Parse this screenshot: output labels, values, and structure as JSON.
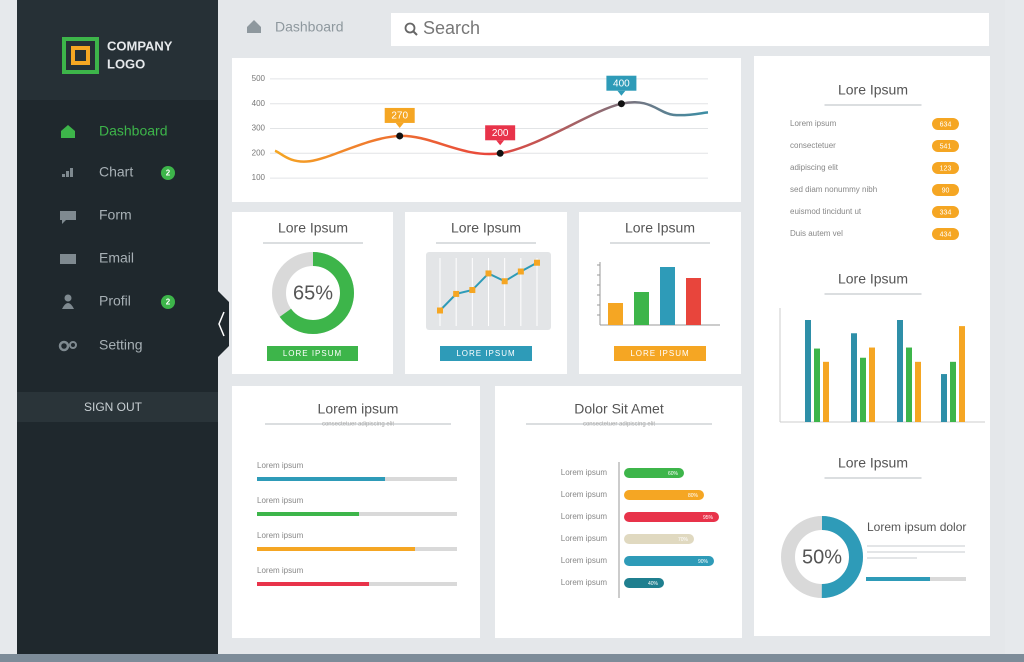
{
  "sidebar": {
    "logo": [
      "COMPANY",
      "LOGO"
    ],
    "nav": [
      {
        "label": "Dashboard"
      },
      {
        "label": "Chart",
        "badge": 2
      },
      {
        "label": "Form"
      },
      {
        "label": "Email"
      },
      {
        "label": "Profil",
        "badge": 2
      },
      {
        "label": "Setting"
      }
    ],
    "sign_out": "SIGN OUT"
  },
  "header": {
    "breadcrumb": "Dashboard",
    "search": "Search"
  },
  "list_card": {
    "title": "Lore Ipsum",
    "items": [
      "Lorem ipsum",
      "consectetuer",
      "adipiscing elit",
      "sed diam nonummy nibh",
      "euismod tincidunt ut",
      "Duis autem vel"
    ],
    "badges": [
      634,
      541,
      123,
      90,
      334,
      434
    ]
  },
  "chart_data": [
    {
      "type": "line",
      "x": [
        0,
        1,
        3.6,
        6.5,
        10,
        11.5,
        12.5
      ],
      "values": [
        210,
        168,
        270,
        200,
        400,
        355,
        365
      ],
      "xlim": [
        0,
        12.5
      ],
      "ylim": [
        60,
        540
      ],
      "yticks": [
        100,
        200,
        300,
        400,
        500
      ],
      "grid": true,
      "colors": [
        "#f5a623",
        "#e8453c",
        "#3b8ea5"
      ],
      "points": {
        "x": [
          3.6,
          6.5,
          10
        ],
        "values": [
          270,
          200,
          400
        ],
        "colors": [
          "#f5a623",
          "#e8334a",
          "#2e9bb8"
        ]
      }
    },
    {
      "type": "donut",
      "title": "Lore Ipsum",
      "values": [
        65
      ],
      "value_labels": [
        "65%"
      ],
      "color": "#3db54a",
      "button": "LORE IPSUM",
      "button_color": "#3db54a"
    },
    {
      "type": "line",
      "title": "Lore Ipsum",
      "values": [
        2,
        3.7,
        4.1,
        5.8,
        5,
        6,
        6.9
      ],
      "ylim": [
        0,
        8
      ],
      "color": "#2e9bb8",
      "marker_color": "#f5a623",
      "button": "LORE IPSUM",
      "button_color": "#2e9bb8"
    },
    {
      "type": "bar",
      "title": "Lore Ipsum",
      "values": [
        22,
        33,
        58,
        47
      ],
      "colors": [
        "#f5a623",
        "#3db54a",
        "#2e9bb8",
        "#e8453c"
      ],
      "ylim": [
        0,
        60
      ],
      "yticks": [
        10,
        20,
        30,
        40,
        50,
        60
      ],
      "button": "LORE IPSUM",
      "button_color": "#f5a623"
    },
    {
      "type": "progress",
      "title": "Lorem ipsum",
      "subtitle": "consectetuer adipiscing elit",
      "categories": [
        "Lorem ipsum",
        "Lorem ipsum",
        "Lorem ipsum",
        "Lorem ipsum"
      ],
      "values": [
        64,
        51,
        79,
        56
      ],
      "colors": [
        "#2e9bb8",
        "#3db54a",
        "#f5a623",
        "#e8334a"
      ],
      "xlim": [
        0,
        100
      ]
    },
    {
      "type": "hbar",
      "title": "Dolor Sit Amet",
      "subtitle": "consectetuer adipiscing elit",
      "categories": [
        "Lorem ipsum",
        "Lorem ipsum",
        "Lorem ipsum",
        "Lorem ipsum",
        "Lorem ipsum",
        "Lorem ipsum"
      ],
      "values": [
        60,
        80,
        95,
        70,
        90,
        40
      ],
      "value_labels": [
        "60%",
        "80%",
        "95%",
        "70%",
        "90%",
        "40%"
      ],
      "colors": [
        "#3db54a",
        "#f5a623",
        "#e8334a",
        "#e0d9c0",
        "#2e9bb8",
        "#1f7f8f"
      ],
      "xlim": [
        0,
        100
      ]
    },
    {
      "type": "grouped_bar",
      "title": "Lore Ipsum",
      "series": [
        {
          "color": "#2e8fa8",
          "values": [
            100,
            87,
            100,
            47
          ]
        },
        {
          "color": "#3db54a",
          "values": [
            72,
            63,
            73,
            59
          ]
        },
        {
          "color": "#f5a623",
          "values": [
            59,
            73,
            59,
            94
          ]
        }
      ],
      "ylim": [
        0,
        100
      ]
    },
    {
      "type": "donut",
      "title": "Lore Ipsum",
      "values": [
        50
      ],
      "value_labels": [
        "50%"
      ],
      "color": "#2e9bb8",
      "heading": "Lorem ipsum dolor",
      "progress": 64
    }
  ]
}
